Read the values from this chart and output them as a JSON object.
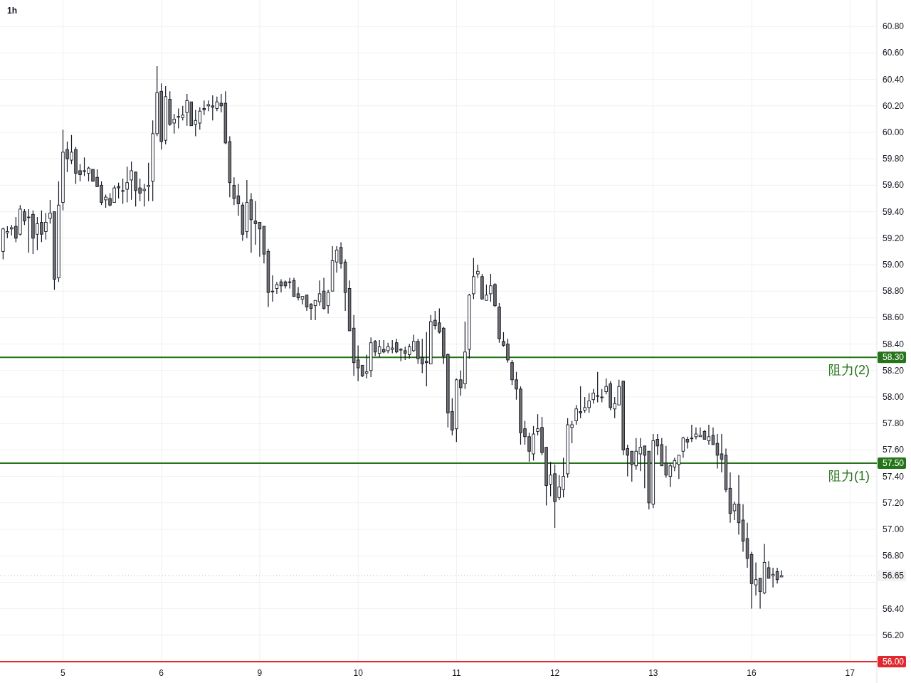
{
  "chart_data": {
    "type": "candlestick",
    "title": "1h",
    "categories": [
      null,
      null,
      null,
      null,
      null,
      null,
      null,
      null,
      null,
      null,
      null,
      null,
      null,
      null,
      "5",
      null,
      null,
      null,
      null,
      null,
      null,
      null,
      null,
      null,
      null,
      null,
      null,
      null,
      null,
      null,
      null,
      null,
      null,
      null,
      null,
      null,
      null,
      "6",
      null,
      null,
      null,
      null,
      null,
      null,
      null,
      null,
      null,
      null,
      null,
      null,
      null,
      null,
      null,
      null,
      null,
      null,
      null,
      null,
      null,
      null,
      "9",
      null,
      null,
      null,
      null,
      null,
      null,
      null,
      null,
      null,
      null,
      null,
      null,
      null,
      null,
      null,
      null,
      null,
      null,
      null,
      null,
      null,
      null,
      "10",
      null,
      null,
      null,
      null,
      null,
      null,
      null,
      null,
      null,
      null,
      null,
      null,
      null,
      null,
      null,
      null,
      null,
      null,
      null,
      null,
      null,
      null,
      "11",
      null,
      null,
      null,
      null,
      null,
      null,
      null,
      null,
      null,
      null,
      null,
      null,
      null,
      null,
      null,
      null,
      null,
      null,
      null,
      null,
      null,
      null,
      "12",
      null,
      null,
      null,
      null,
      null,
      null,
      null,
      null,
      null,
      null,
      null,
      null,
      null,
      null,
      null,
      null,
      null,
      null,
      null,
      null,
      null,
      null,
      "13",
      null,
      null,
      null,
      null,
      null,
      null,
      null,
      null,
      null,
      null,
      null,
      null,
      null,
      null,
      null,
      null,
      null,
      null,
      null,
      null,
      null,
      null,
      "16",
      null,
      null,
      null,
      null,
      null,
      null,
      null,
      null,
      null,
      null,
      null,
      null,
      null,
      null,
      null,
      null,
      null,
      null,
      null,
      null,
      null,
      null,
      "17",
      null,
      null,
      null,
      null,
      null,
      null
    ],
    "ohlc": [
      [
        59.1,
        59.28,
        59.04,
        59.27
      ],
      [
        59.24,
        59.29,
        59.2,
        59.25
      ],
      [
        59.27,
        59.3,
        59.22,
        59.28
      ],
      [
        59.29,
        59.36,
        59.17,
        59.2
      ],
      [
        59.23,
        59.45,
        59.22,
        59.42
      ],
      [
        59.4,
        59.42,
        59.3,
        59.33
      ],
      [
        59.36,
        59.42,
        59.09,
        59.36
      ],
      [
        59.38,
        59.41,
        59.08,
        59.2
      ],
      [
        59.23,
        59.36,
        59.11,
        59.31
      ],
      [
        59.32,
        59.41,
        59.17,
        59.23
      ],
      [
        59.25,
        59.39,
        59.19,
        59.32
      ],
      [
        59.35,
        59.49,
        59.31,
        59.39
      ],
      [
        59.4,
        59.4,
        58.81,
        58.89
      ],
      [
        58.9,
        59.63,
        58.87,
        59.45
      ],
      [
        59.47,
        60.02,
        59.41,
        59.85
      ],
      [
        59.87,
        59.93,
        59.7,
        59.8
      ],
      [
        59.79,
        59.98,
        59.76,
        59.85
      ],
      [
        59.87,
        59.89,
        59.61,
        59.69
      ],
      [
        59.71,
        59.76,
        59.63,
        59.68
      ],
      [
        59.71,
        59.81,
        59.67,
        59.71
      ],
      [
        59.69,
        59.74,
        59.63,
        59.73
      ],
      [
        59.72,
        59.72,
        59.63,
        59.63
      ],
      [
        59.66,
        59.72,
        59.59,
        59.59
      ],
      [
        59.6,
        59.63,
        59.45,
        59.47
      ],
      [
        59.49,
        59.53,
        59.43,
        59.51
      ],
      [
        59.5,
        59.54,
        59.44,
        59.45
      ],
      [
        59.47,
        59.6,
        59.47,
        59.58
      ],
      [
        59.59,
        59.62,
        59.5,
        59.58
      ],
      [
        59.56,
        59.65,
        59.46,
        59.56
      ],
      [
        59.57,
        59.74,
        59.47,
        59.62
      ],
      [
        59.64,
        59.78,
        59.49,
        59.71
      ],
      [
        59.7,
        59.7,
        59.44,
        59.56
      ],
      [
        59.58,
        59.65,
        59.48,
        59.54
      ],
      [
        59.56,
        59.61,
        59.44,
        59.57
      ],
      [
        59.59,
        59.77,
        59.48,
        59.6
      ],
      [
        59.63,
        60.09,
        59.48,
        59.99
      ],
      [
        59.99,
        60.5,
        59.97,
        60.3
      ],
      [
        60.31,
        60.37,
        59.87,
        59.93
      ],
      [
        59.94,
        60.35,
        59.91,
        60.27
      ],
      [
        60.25,
        60.31,
        60.05,
        60.06
      ],
      [
        60.07,
        60.14,
        59.99,
        60.1
      ],
      [
        60.12,
        60.18,
        60.03,
        60.12
      ],
      [
        60.11,
        60.2,
        60.09,
        60.13
      ],
      [
        60.15,
        60.29,
        60.05,
        60.24
      ],
      [
        60.23,
        60.23,
        60.05,
        60.05
      ],
      [
        60.06,
        60.17,
        59.97,
        60.09
      ],
      [
        60.07,
        60.19,
        60.02,
        60.16
      ],
      [
        60.18,
        60.24,
        60.13,
        60.17
      ],
      [
        60.2,
        60.24,
        60.16,
        60.21
      ],
      [
        60.2,
        60.28,
        60.09,
        60.19
      ],
      [
        60.18,
        60.27,
        60.16,
        60.23
      ],
      [
        60.22,
        60.29,
        60.15,
        60.2
      ],
      [
        60.22,
        60.31,
        59.91,
        59.92
      ],
      [
        59.93,
        59.97,
        59.51,
        59.62
      ],
      [
        59.6,
        59.66,
        59.45,
        59.5
      ],
      [
        59.52,
        59.61,
        59.37,
        59.46
      ],
      [
        59.45,
        59.47,
        59.18,
        59.23
      ],
      [
        59.25,
        59.64,
        59.2,
        59.47
      ],
      [
        59.49,
        59.54,
        59.09,
        59.34
      ],
      [
        59.33,
        59.48,
        59.15,
        59.31
      ],
      [
        59.32,
        59.32,
        59.06,
        59.27
      ],
      [
        59.29,
        59.29,
        59.01,
        59.08
      ],
      [
        59.1,
        59.12,
        58.68,
        58.79
      ],
      [
        58.8,
        58.92,
        58.72,
        58.8
      ],
      [
        58.82,
        58.87,
        58.78,
        58.85
      ],
      [
        58.87,
        58.89,
        58.79,
        58.84
      ],
      [
        58.87,
        58.88,
        58.82,
        58.84
      ],
      [
        58.87,
        58.9,
        58.82,
        58.87
      ],
      [
        58.88,
        58.9,
        58.76,
        58.76
      ],
      [
        58.78,
        58.83,
        58.73,
        58.75
      ],
      [
        58.74,
        58.76,
        58.7,
        58.76
      ],
      [
        58.77,
        58.77,
        58.65,
        58.68
      ],
      [
        58.7,
        58.71,
        58.58,
        58.67
      ],
      [
        58.69,
        58.73,
        58.58,
        58.73
      ],
      [
        58.72,
        58.88,
        58.69,
        58.78
      ],
      [
        58.8,
        58.9,
        58.66,
        58.67
      ],
      [
        58.69,
        58.81,
        58.63,
        58.79
      ],
      [
        58.8,
        59.14,
        58.8,
        59.03
      ],
      [
        59.02,
        59.14,
        58.94,
        59.11
      ],
      [
        59.13,
        59.17,
        58.97,
        59.01
      ],
      [
        59.02,
        59.04,
        58.65,
        58.79
      ],
      [
        58.82,
        58.88,
        58.5,
        58.5
      ],
      [
        58.52,
        58.62,
        58.16,
        58.26
      ],
      [
        58.28,
        58.39,
        58.12,
        58.22
      ],
      [
        58.24,
        58.24,
        58.15,
        58.16
      ],
      [
        58.18,
        58.32,
        58.14,
        58.19
      ],
      [
        58.2,
        58.45,
        58.15,
        58.41
      ],
      [
        58.42,
        58.43,
        58.31,
        58.34
      ],
      [
        58.33,
        58.43,
        58.3,
        58.38
      ],
      [
        58.36,
        58.43,
        58.33,
        58.34
      ],
      [
        58.35,
        58.41,
        58.33,
        58.38
      ],
      [
        58.36,
        58.43,
        58.33,
        58.37
      ],
      [
        58.41,
        58.44,
        58.33,
        58.34
      ],
      [
        58.36,
        58.37,
        58.27,
        58.36
      ],
      [
        58.35,
        58.38,
        58.28,
        58.33
      ],
      [
        58.32,
        58.4,
        58.29,
        58.38
      ],
      [
        58.35,
        58.47,
        58.34,
        58.42
      ],
      [
        58.42,
        58.44,
        58.25,
        58.29
      ],
      [
        58.3,
        58.44,
        58.18,
        58.25
      ],
      [
        58.27,
        58.49,
        58.08,
        58.26
      ],
      [
        58.25,
        58.62,
        58.25,
        58.57
      ],
      [
        58.58,
        58.65,
        58.51,
        58.54
      ],
      [
        58.56,
        58.67,
        58.48,
        58.49
      ],
      [
        58.52,
        58.53,
        58.25,
        58.31
      ],
      [
        58.32,
        58.33,
        57.77,
        57.88
      ],
      [
        57.89,
        57.99,
        57.71,
        57.75
      ],
      [
        57.76,
        58.14,
        57.66,
        58.13
      ],
      [
        58.13,
        58.2,
        58.01,
        58.07
      ],
      [
        58.1,
        58.57,
        58.06,
        58.34
      ],
      [
        58.36,
        58.78,
        58.29,
        58.77
      ],
      [
        58.78,
        59.05,
        58.74,
        58.91
      ],
      [
        58.93,
        59.0,
        58.9,
        58.95
      ],
      [
        58.91,
        58.93,
        58.74,
        58.74
      ],
      [
        58.73,
        58.85,
        58.73,
        58.77
      ],
      [
        58.78,
        58.93,
        58.72,
        58.84
      ],
      [
        58.85,
        58.86,
        58.68,
        58.69
      ],
      [
        58.68,
        58.71,
        58.41,
        58.44
      ],
      [
        58.42,
        58.49,
        58.38,
        58.39
      ],
      [
        58.4,
        58.44,
        58.26,
        58.28
      ],
      [
        58.26,
        58.28,
        58.09,
        58.13
      ],
      [
        58.13,
        58.19,
        57.98,
        58.06
      ],
      [
        58.06,
        58.08,
        57.64,
        57.73
      ],
      [
        57.76,
        57.82,
        57.64,
        57.7
      ],
      [
        57.7,
        57.73,
        57.51,
        57.59
      ],
      [
        57.57,
        57.78,
        57.52,
        57.72
      ],
      [
        57.74,
        57.87,
        57.71,
        57.76
      ],
      [
        57.77,
        57.85,
        57.56,
        57.58
      ],
      [
        57.62,
        57.62,
        57.18,
        57.33
      ],
      [
        57.34,
        57.51,
        57.25,
        57.41
      ],
      [
        57.42,
        57.49,
        57.01,
        57.21
      ],
      [
        57.24,
        57.41,
        57.22,
        57.32
      ],
      [
        57.3,
        57.54,
        57.24,
        57.4
      ],
      [
        57.42,
        57.84,
        57.39,
        57.79
      ],
      [
        57.77,
        57.82,
        57.65,
        57.79
      ],
      [
        57.82,
        57.94,
        57.79,
        57.91
      ],
      [
        57.89,
        58.08,
        57.84,
        57.88
      ],
      [
        57.9,
        58.0,
        57.88,
        57.92
      ],
      [
        57.92,
        58.03,
        57.88,
        57.97
      ],
      [
        57.98,
        58.06,
        57.95,
        58.03
      ],
      [
        58.01,
        58.19,
        57.96,
        58.01
      ],
      [
        58.0,
        58.06,
        57.96,
        58.0
      ],
      [
        58.04,
        58.14,
        58.02,
        58.08
      ],
      [
        58.1,
        58.12,
        57.9,
        57.92
      ],
      [
        57.91,
        58.0,
        57.84,
        57.95
      ],
      [
        57.94,
        58.13,
        57.94,
        58.08
      ],
      [
        58.12,
        58.12,
        57.56,
        57.6
      ],
      [
        57.61,
        57.64,
        57.4,
        57.56
      ],
      [
        57.59,
        57.59,
        57.36,
        57.49
      ],
      [
        57.48,
        57.69,
        57.45,
        57.59
      ],
      [
        57.57,
        57.69,
        57.44,
        57.62
      ],
      [
        57.63,
        57.63,
        57.31,
        57.56
      ],
      [
        57.59,
        57.59,
        57.15,
        57.2
      ],
      [
        57.19,
        57.72,
        57.16,
        57.67
      ],
      [
        57.68,
        57.72,
        57.56,
        57.63
      ],
      [
        57.64,
        57.69,
        57.48,
        57.48
      ],
      [
        57.5,
        57.63,
        57.39,
        57.41
      ],
      [
        57.4,
        57.5,
        57.32,
        57.48
      ],
      [
        57.47,
        57.54,
        57.44,
        57.52
      ],
      [
        57.49,
        57.56,
        57.38,
        57.56
      ],
      [
        57.59,
        57.7,
        57.54,
        57.69
      ],
      [
        57.68,
        57.7,
        57.61,
        57.66
      ],
      [
        57.69,
        57.79,
        57.66,
        57.69
      ],
      [
        57.7,
        57.77,
        57.68,
        57.72
      ],
      [
        57.7,
        57.77,
        57.7,
        57.71
      ],
      [
        57.74,
        57.75,
        57.68,
        57.68
      ],
      [
        57.67,
        57.79,
        57.64,
        57.7
      ],
      [
        57.71,
        57.77,
        57.64,
        57.64
      ],
      [
        57.65,
        57.72,
        57.46,
        57.56
      ],
      [
        57.57,
        57.72,
        57.43,
        57.53
      ],
      [
        57.56,
        57.61,
        57.28,
        57.3
      ],
      [
        57.31,
        57.43,
        57.05,
        57.12
      ],
      [
        57.14,
        57.21,
        57.07,
        57.19
      ],
      [
        57.19,
        57.41,
        56.96,
        57.05
      ],
      [
        57.07,
        57.19,
        56.83,
        56.91
      ],
      [
        56.93,
        57.05,
        56.71,
        56.78
      ],
      [
        56.81,
        56.83,
        56.4,
        56.59
      ],
      [
        56.58,
        56.75,
        56.5,
        56.62
      ],
      [
        56.63,
        56.63,
        56.4,
        56.53
      ],
      [
        56.52,
        56.89,
        56.51,
        56.75
      ],
      [
        56.71,
        56.76,
        56.63,
        56.63
      ],
      [
        56.65,
        56.71,
        56.56,
        56.66
      ],
      [
        56.68,
        56.71,
        56.59,
        56.62
      ],
      [
        56.64,
        56.69,
        56.64,
        56.65
      ],
      null,
      null,
      null,
      null,
      null,
      null,
      null,
      null,
      null,
      null,
      null,
      null,
      null,
      null,
      null,
      null,
      null,
      null,
      null,
      null,
      null,
      null
    ],
    "ylim": [
      56.0,
      61.0
    ],
    "yticks": [
      {
        "value": 56.2,
        "label": "56.20"
      },
      {
        "value": 56.4,
        "label": "56.40"
      },
      {
        "value": 56.6,
        "label": null
      },
      {
        "value": 56.8,
        "label": "56.80"
      },
      {
        "value": 57.0,
        "label": "57.00"
      },
      {
        "value": 57.2,
        "label": "57.20"
      },
      {
        "value": 57.4,
        "label": "57.40"
      },
      {
        "value": 57.6,
        "label": "57.60"
      },
      {
        "value": 57.8,
        "label": "57.80"
      },
      {
        "value": 58.0,
        "label": "58.00"
      },
      {
        "value": 58.2,
        "label": "58.20"
      },
      {
        "value": 58.4,
        "label": "58.40"
      },
      {
        "value": 58.6,
        "label": "58.60"
      },
      {
        "value": 58.8,
        "label": "58.80"
      },
      {
        "value": 59.0,
        "label": "59.00"
      },
      {
        "value": 59.2,
        "label": "59.20"
      },
      {
        "value": 59.4,
        "label": "59.40"
      },
      {
        "value": 59.6,
        "label": "59.60"
      },
      {
        "value": 59.8,
        "label": "59.80"
      },
      {
        "value": 60.0,
        "label": "60.00"
      },
      {
        "value": 60.2,
        "label": "60.20"
      },
      {
        "value": 60.4,
        "label": "60.40"
      },
      {
        "value": 60.6,
        "label": "60.60"
      },
      {
        "value": 60.8,
        "label": "60.80"
      }
    ],
    "grid": true,
    "annotations": [
      {
        "text": "58.30",
        "y": 58.3
      },
      {
        "text": "57.50",
        "y": 57.5
      },
      {
        "text": "56.65",
        "y": 56.65
      },
      {
        "text": "56.00",
        "y": 56.0
      }
    ],
    "ref_lines": [
      {
        "axis": "y",
        "value": 58.3,
        "label": "阻力(2)",
        "color": "#26741a"
      },
      {
        "axis": "y",
        "value": 57.5,
        "label": "阻力(1)",
        "color": "#26741a"
      },
      {
        "axis": "y",
        "value": 56.65,
        "line_style": "dotted",
        "color": "#b2b5be"
      },
      {
        "axis": "y",
        "value": 56.0,
        "color": "#e0282e"
      }
    ]
  }
}
